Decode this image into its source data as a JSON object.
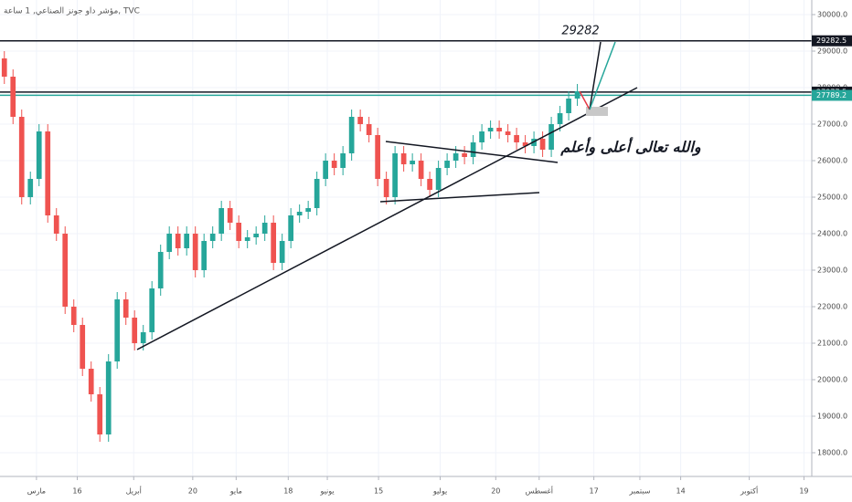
{
  "chart_data": {
    "type": "candlestick",
    "title": "مؤشر داو جونز الصناعي, 1 ساعة, TVC",
    "annotations": [
      "29282",
      "والله تعالى أعلى وأعلم"
    ],
    "up_color": "#26a69a",
    "down_color": "#ef5350",
    "open": [
      28800,
      28300,
      27200,
      25000,
      25500,
      26800,
      24500,
      24000,
      22000,
      21500,
      20300,
      19600,
      18500,
      20500,
      22200,
      21700,
      21000,
      21300,
      22500,
      23500,
      24000,
      23600,
      24000,
      23000,
      23800,
      24000,
      24700,
      24300,
      23800,
      23900,
      24000,
      24300,
      23200,
      23800,
      24500,
      24600,
      24700,
      25500,
      26000,
      25800,
      26200,
      27200,
      27000,
      26700,
      25500,
      25000,
      26200,
      25900,
      26000,
      25500,
      25200,
      25800,
      26000,
      26200,
      26100,
      26500,
      26800,
      26900,
      26800,
      26700,
      26500,
      26400,
      26600,
      26300,
      27000,
      27300,
      27700
    ],
    "high": [
      29000,
      28500,
      27400,
      25700,
      27000,
      27000,
      24700,
      24200,
      22200,
      21700,
      20500,
      19800,
      20700,
      22400,
      22400,
      21900,
      21500,
      22700,
      23700,
      24200,
      24200,
      24200,
      24200,
      24000,
      24200,
      24900,
      24900,
      24500,
      24100,
      24200,
      24500,
      24500,
      24000,
      24700,
      24800,
      24900,
      25700,
      26200,
      26200,
      26400,
      27400,
      27400,
      27200,
      26900,
      25700,
      26400,
      26400,
      26200,
      26200,
      25700,
      26000,
      26200,
      26400,
      26400,
      26700,
      27000,
      27100,
      27100,
      27000,
      26900,
      26700,
      26800,
      26800,
      27200,
      27500,
      27900,
      28100
    ],
    "low": [
      28100,
      27000,
      24800,
      24800,
      25300,
      24300,
      23800,
      21800,
      21300,
      20100,
      19400,
      18300,
      18300,
      20300,
      21500,
      20800,
      20800,
      21100,
      22300,
      23300,
      23400,
      23400,
      22800,
      22800,
      23600,
      23800,
      24100,
      23600,
      23600,
      23700,
      23800,
      23000,
      23000,
      23600,
      24300,
      24400,
      24500,
      25300,
      25600,
      25600,
      26000,
      26800,
      26500,
      25300,
      24800,
      24800,
      25700,
      25700,
      25300,
      25000,
      25000,
      25600,
      25800,
      25900,
      25900,
      26300,
      26600,
      26600,
      26500,
      26300,
      26200,
      26200,
      26100,
      26100,
      26800,
      27100,
      27500
    ],
    "close": [
      28300,
      27200,
      25000,
      25500,
      26800,
      24500,
      24000,
      22000,
      21500,
      20300,
      19600,
      18500,
      20500,
      22200,
      21700,
      21000,
      21300,
      22500,
      23500,
      24000,
      23600,
      24000,
      23000,
      23800,
      24000,
      24700,
      24300,
      23800,
      23900,
      24000,
      24300,
      23200,
      23800,
      24500,
      24600,
      24700,
      25500,
      26000,
      25800,
      26200,
      27200,
      27000,
      26700,
      25500,
      25000,
      26200,
      25900,
      26000,
      25500,
      25200,
      25800,
      26000,
      26200,
      26100,
      26500,
      26800,
      26900,
      26800,
      26700,
      26500,
      26400,
      26600,
      26300,
      27000,
      27300,
      27700,
      27900
    ],
    "xlim": [
      -0.5,
      93
    ],
    "xticks": [
      {
        "value": 3.7,
        "label": "مارس"
      },
      {
        "value": 8.4,
        "label": "16"
      },
      {
        "value": 14.9,
        "label": "أبريل"
      },
      {
        "value": 21.7,
        "label": "20"
      },
      {
        "value": 26.7,
        "label": "مايو"
      },
      {
        "value": 32.7,
        "label": "18"
      },
      {
        "value": 37.2,
        "label": "يونيو"
      },
      {
        "value": 43.1,
        "label": "15"
      },
      {
        "value": 50.2,
        "label": "يوليو"
      },
      {
        "value": 56.6,
        "label": "20"
      },
      {
        "value": 61.6,
        "label": "أغسطس"
      },
      {
        "value": 67.9,
        "label": "17"
      },
      {
        "value": 73.2,
        "label": "سبتمبر"
      },
      {
        "value": 77.9,
        "label": "14"
      },
      {
        "value": 85.8,
        "label": "أكتوبر"
      },
      {
        "value": 92.1,
        "label": "19"
      }
    ],
    "ylim": [
      17350,
      30400
    ],
    "yticks": [
      {
        "value": 18000,
        "label": "18000.0"
      },
      {
        "value": 19000,
        "label": "19000.0"
      },
      {
        "value": 20000,
        "label": "20000.0"
      },
      {
        "value": 21000,
        "label": "21000.0"
      },
      {
        "value": 22000,
        "label": "22000.0"
      },
      {
        "value": 23000,
        "label": "23000.0"
      },
      {
        "value": 24000,
        "label": "24000.0"
      },
      {
        "value": 25000,
        "label": "25000.0"
      },
      {
        "value": 26000,
        "label": "26000.0"
      },
      {
        "value": 27000,
        "label": "27000.0"
      },
      {
        "value": 28000,
        "label": "28000.0"
      },
      {
        "value": 29000,
        "label": "29000.0"
      },
      {
        "value": 30000,
        "label": "30000.0"
      }
    ],
    "price_lines": [
      {
        "value": 29282.5,
        "color": "#131722"
      },
      {
        "value": 27877.5,
        "color": "#131722"
      },
      {
        "value": 27789.2,
        "color": "#26a69a"
      }
    ],
    "grid": true
  }
}
